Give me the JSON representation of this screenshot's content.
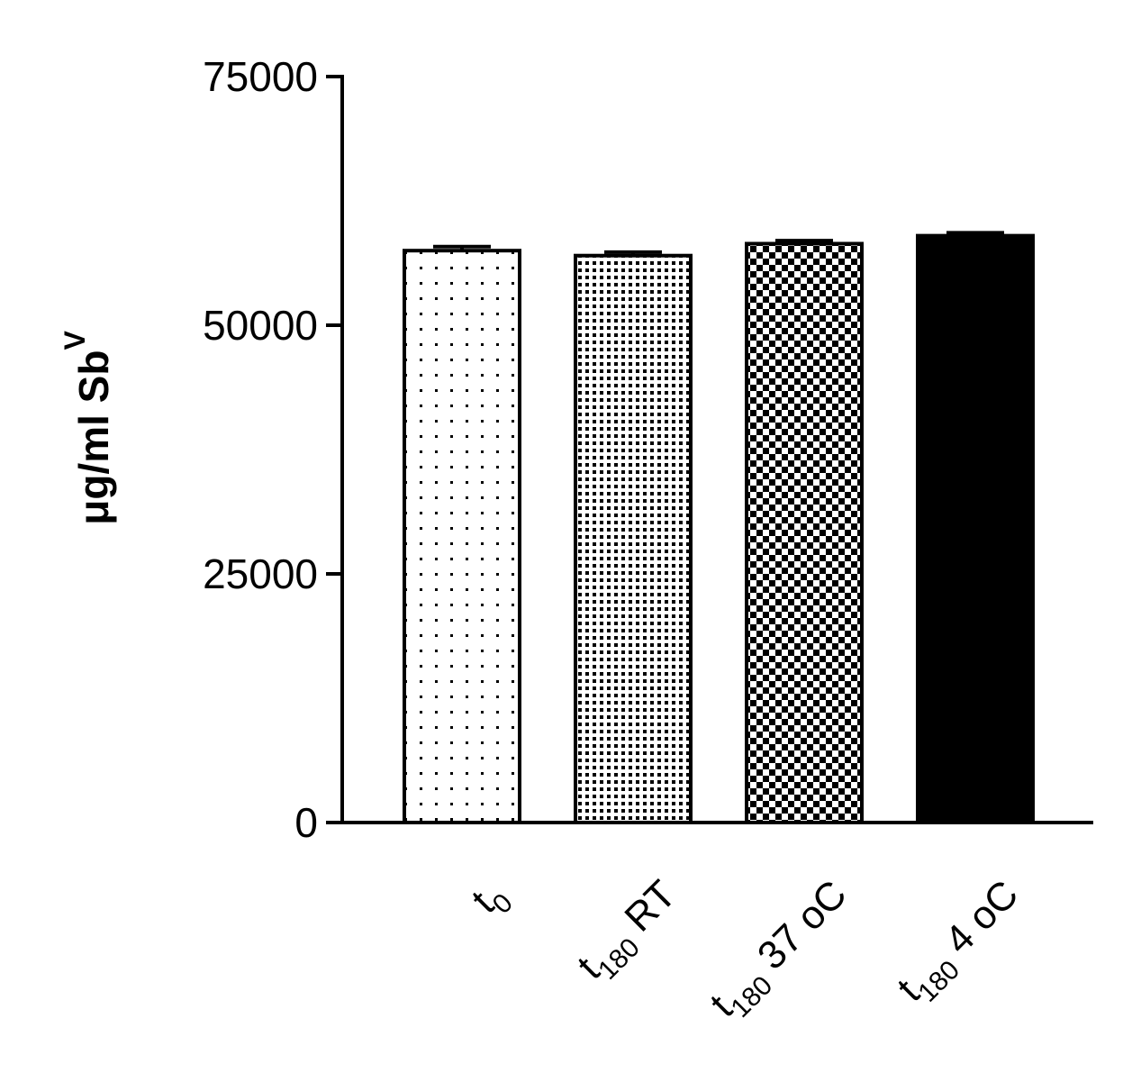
{
  "chart_data": {
    "type": "bar",
    "categories": [
      {
        "main": "t",
        "sub": "0",
        "rest": ""
      },
      {
        "main": "t",
        "sub": "180",
        "rest": " RT"
      },
      {
        "main": "t",
        "sub": "180",
        "rest": " 37 oC"
      },
      {
        "main": "t",
        "sub": "180",
        "rest": " 4 oC"
      }
    ],
    "values": [
      57500,
      57000,
      58200,
      59000
    ],
    "errors": [
      400,
      350,
      300,
      300
    ],
    "patterns": [
      "sparse-dots",
      "dense-dots",
      "checker",
      "solid"
    ],
    "ylabel": {
      "main": "μg/ml Sb",
      "sup": "V"
    },
    "ylim": [
      0,
      75000
    ],
    "yticks": [
      "0",
      "25000",
      "50000",
      "75000"
    ],
    "grid": false,
    "colors": {
      "fill": "#000000",
      "background": "#ffffff"
    }
  }
}
